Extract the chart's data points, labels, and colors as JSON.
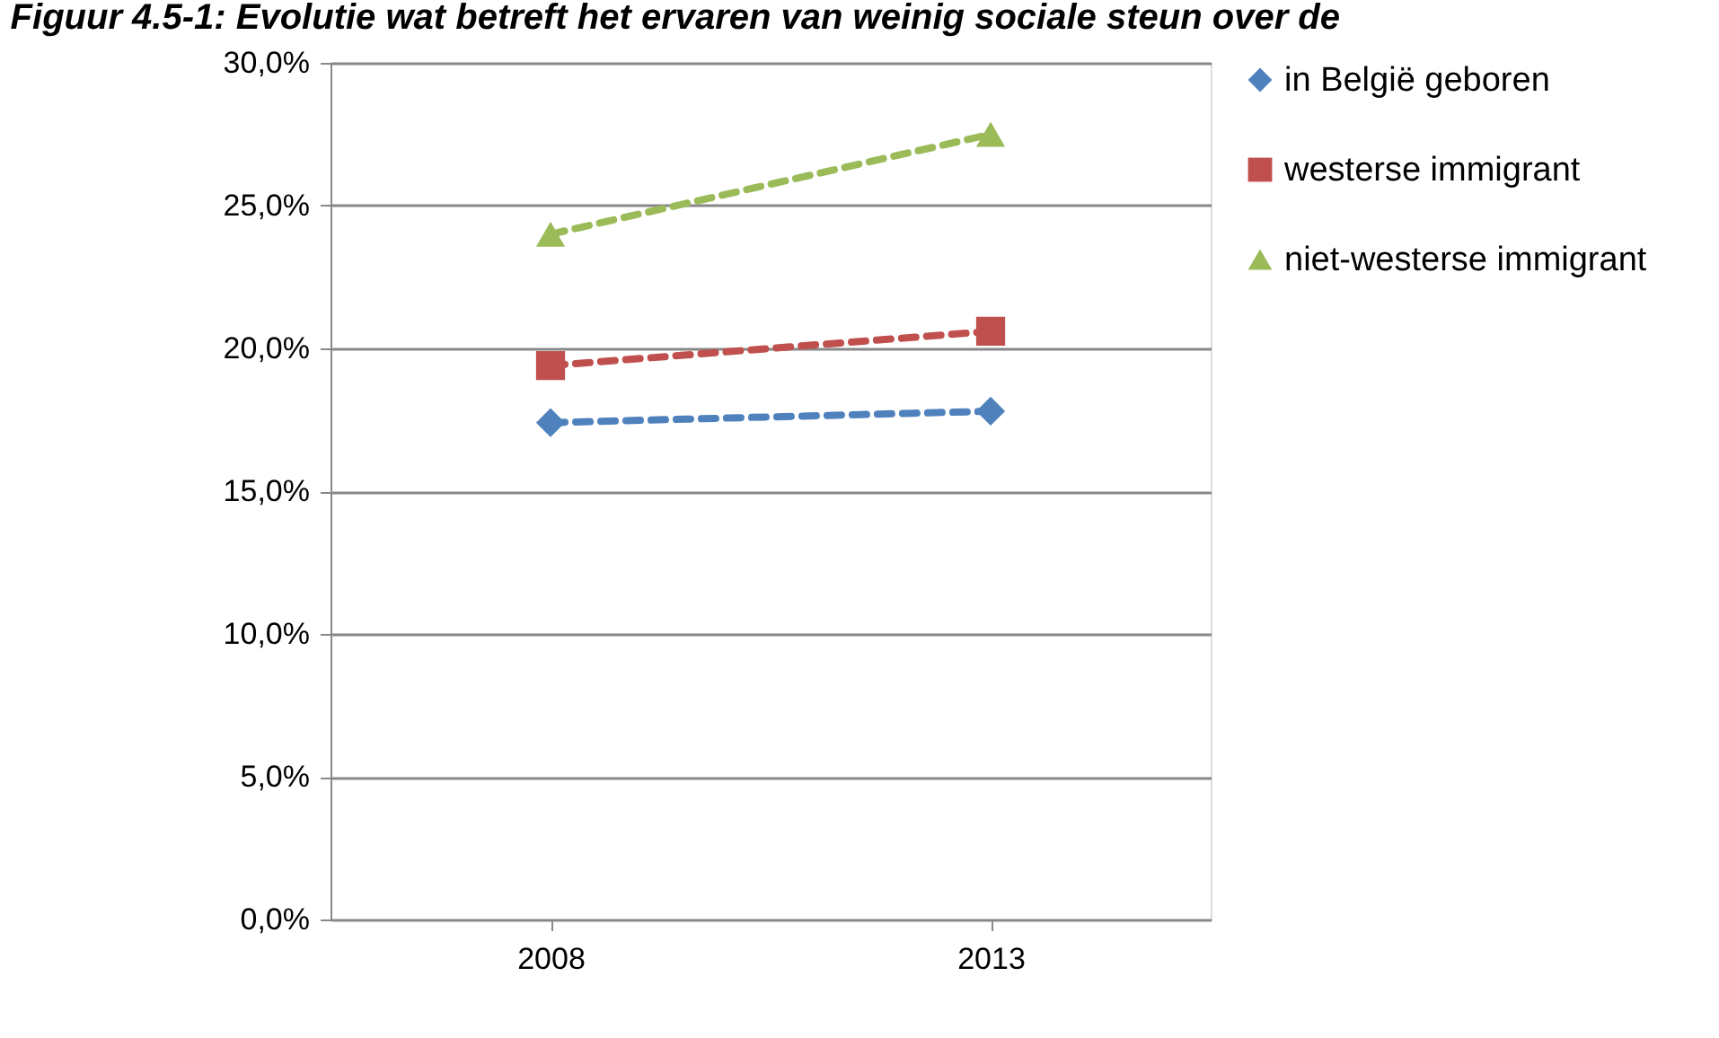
{
  "chart_data": {
    "type": "line",
    "title": "Figuur 4.5-1: Evolutie wat betreft het ervaren van weinig sociale steun over de",
    "categories": [
      "2008",
      "2013"
    ],
    "series": [
      {
        "name": "in België geboren",
        "color": "#4f81bd",
        "marker": "diamond",
        "values": [
          17.4,
          17.8
        ]
      },
      {
        "name": "westerse immigrant",
        "color": "#c0504d",
        "marker": "square",
        "values": [
          19.4,
          20.6
        ]
      },
      {
        "name": "niet-westerse immigrant",
        "color": "#9bbb59",
        "marker": "triangle",
        "values": [
          24.0,
          27.5
        ]
      }
    ],
    "ylim": [
      0,
      30
    ],
    "yticks": [
      {
        "value": 0,
        "label": "0,0%"
      },
      {
        "value": 5,
        "label": "5,0%"
      },
      {
        "value": 10,
        "label": "10,0%"
      },
      {
        "value": 15,
        "label": "15,0%"
      },
      {
        "value": 20,
        "label": "20,0%"
      },
      {
        "value": 25,
        "label": "25,0%"
      },
      {
        "value": 30,
        "label": "30,0%"
      }
    ],
    "grid": "y",
    "legend": "right",
    "line_style": "dashed"
  }
}
